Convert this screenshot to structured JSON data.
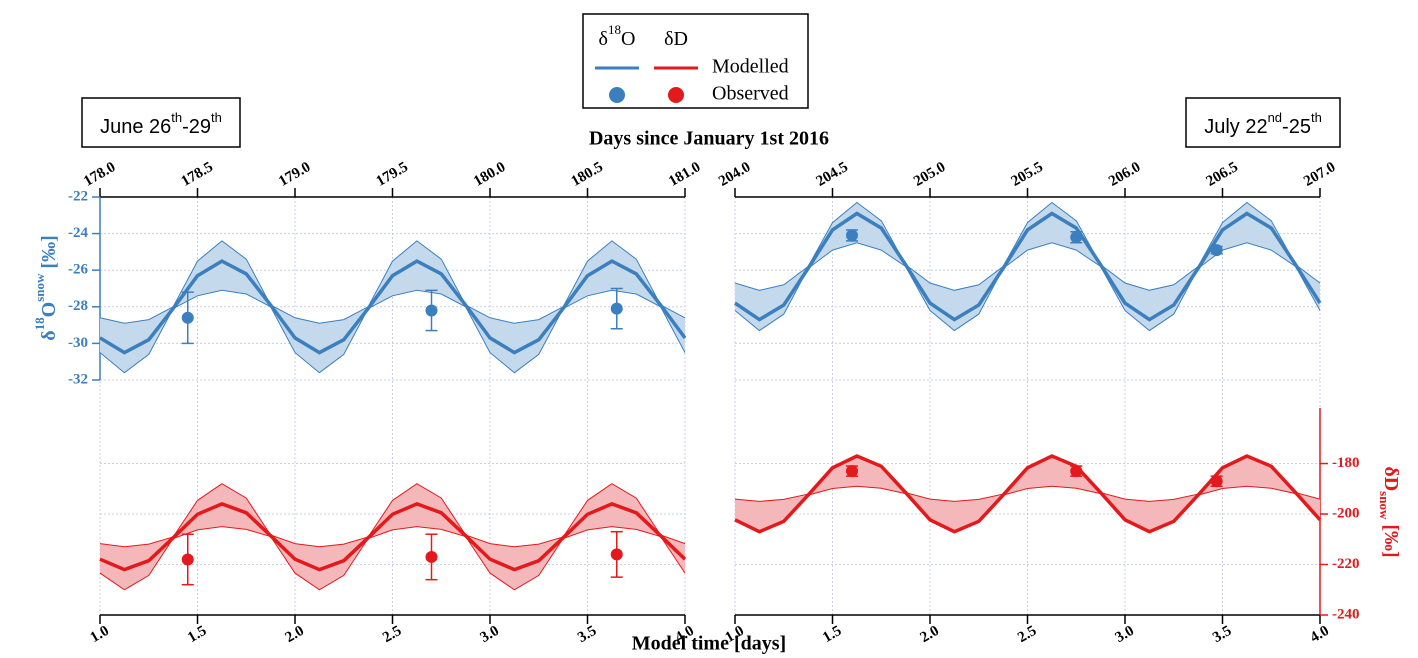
{
  "chart_data": [
    {
      "type": "line",
      "title": [
        {
          "text": "June 26"
        },
        {
          "text": "th",
          "sup": true
        },
        {
          "text": "-29"
        },
        {
          "text": "th",
          "sup": true
        }
      ],
      "x": [
        1,
        1.125,
        1.25,
        1.375,
        1.5,
        1.625,
        1.75,
        1.875,
        2,
        2.125,
        2.25,
        2.375,
        2.5,
        2.625,
        2.75,
        2.875,
        3,
        3.125,
        3.25,
        3.375,
        3.5,
        3.625,
        3.75,
        3.875,
        4
      ],
      "xlim": [
        1,
        4
      ],
      "xticks": [
        {
          "value": 1,
          "label": "1.0"
        },
        {
          "value": 1.5,
          "label": "1.5"
        },
        {
          "value": 2,
          "label": "2.0"
        },
        {
          "value": 2.5,
          "label": "2.5"
        },
        {
          "value": 3,
          "label": "3.0"
        },
        {
          "value": 3.5,
          "label": "3.5"
        },
        {
          "value": 4,
          "label": "4.0"
        }
      ],
      "x2lim": [
        178,
        181
      ],
      "x2ticks": [
        {
          "value": 178,
          "label": "178.0"
        },
        {
          "value": 178.5,
          "label": "178.5"
        },
        {
          "value": 179,
          "label": "179.0"
        },
        {
          "value": 179.5,
          "label": "179.5"
        },
        {
          "value": 180,
          "label": "180.0"
        },
        {
          "value": 180.5,
          "label": "180.5"
        },
        {
          "value": 181,
          "label": "181.0"
        }
      ],
      "ylim": [
        -32,
        -22
      ],
      "yticks": [
        -32,
        -30,
        -28,
        -26,
        -24,
        -22
      ],
      "y2lim": [
        -240,
        -158
      ],
      "grid": true,
      "series": [
        {
          "color": "#3b7fbf",
          "band_color": "#c5d9ec",
          "values": [
            -29.7,
            -30.5,
            -29.8,
            -28.1,
            -26.3,
            -25.5,
            -26.2,
            -27.9,
            -29.7,
            -30.5,
            -29.8,
            -28.1,
            -26.3,
            -25.5,
            -26.2,
            -27.9,
            -29.7,
            -30.5,
            -29.8,
            -28.1,
            -26.3,
            -25.5,
            -26.2,
            -27.9,
            -29.7
          ],
          "upper": [
            -28.6,
            -28.9,
            -28.7,
            -28.0,
            -25.5,
            -24.4,
            -25.4,
            -27.9,
            -28.6,
            -28.9,
            -28.7,
            -28.0,
            -25.5,
            -24.4,
            -25.4,
            -27.9,
            -28.6,
            -28.9,
            -28.7,
            -28.0,
            -25.5,
            -24.4,
            -25.4,
            -27.9,
            -28.6
          ],
          "lower": [
            -30.5,
            -31.6,
            -30.6,
            -28.1,
            -27.4,
            -27.1,
            -27.3,
            -28.0,
            -30.5,
            -31.6,
            -30.6,
            -28.1,
            -27.4,
            -27.1,
            -27.3,
            -28.0,
            -30.5,
            -31.6,
            -30.6,
            -28.1,
            -27.4,
            -27.1,
            -27.3,
            -28.0,
            -30.5
          ],
          "observed": {
            "x": [
              1.45,
              2.7,
              3.65
            ],
            "values": [
              -28.6,
              -28.2,
              -28.1
            ],
            "errors": [
              1.4,
              1.1,
              1.1
            ]
          }
        },
        {
          "axis": "y2",
          "color": "#e3191c",
          "band_color": "#f5b8ba",
          "values": [
            -217.9,
            -222,
            -218.5,
            -209.4,
            -200.1,
            -196,
            -199.5,
            -208.6,
            -217.9,
            -222,
            -218.5,
            -209.4,
            -200.1,
            -196,
            -199.5,
            -208.6,
            -217.9,
            -222,
            -218.5,
            -209.4,
            -200.1,
            -196,
            -199.5,
            -208.6,
            -217.9
          ],
          "upper": [
            -211.7,
            -213,
            -211.9,
            -209.1,
            -194.6,
            -188,
            -193.7,
            -208.3,
            -211.7,
            -213,
            -211.9,
            -209.1,
            -194.6,
            -188,
            -193.7,
            -208.3,
            -211.7,
            -213,
            -211.9,
            -209.1,
            -194.6,
            -188,
            -193.7,
            -208.3,
            -211.7
          ],
          "lower": [
            -223.4,
            -230,
            -224.3,
            -209.7,
            -206.3,
            -205,
            -206.1,
            -208.9,
            -223.4,
            -230,
            -224.3,
            -209.7,
            -206.3,
            -205,
            -206.1,
            -208.9,
            -223.4,
            -230,
            -224.3,
            -209.7,
            -206.3,
            -205,
            -206.1,
            -208.9,
            -223.4
          ],
          "observed": {
            "x": [
              1.45,
              2.7,
              3.65
            ],
            "values": [
              -218,
              -217,
              -216
            ],
            "errors": [
              10,
              9,
              9
            ]
          }
        }
      ]
    },
    {
      "type": "line",
      "title": [
        {
          "text": "July 22"
        },
        {
          "text": "nd",
          "sup": true
        },
        {
          "text": "-25"
        },
        {
          "text": "th",
          "sup": true
        }
      ],
      "x": [
        1,
        1.125,
        1.25,
        1.375,
        1.5,
        1.625,
        1.75,
        1.875,
        2,
        2.125,
        2.25,
        2.375,
        2.5,
        2.625,
        2.75,
        2.875,
        3,
        3.125,
        3.25,
        3.375,
        3.5,
        3.625,
        3.75,
        3.875,
        4
      ],
      "xlim": [
        1,
        4
      ],
      "xticks": [
        {
          "value": 1,
          "label": "1.0"
        },
        {
          "value": 1.5,
          "label": "1.5"
        },
        {
          "value": 2,
          "label": "2.0"
        },
        {
          "value": 2.5,
          "label": "2.5"
        },
        {
          "value": 3,
          "label": "3.0"
        },
        {
          "value": 3.5,
          "label": "3.5"
        },
        {
          "value": 4,
          "label": "4.0"
        }
      ],
      "x2lim": [
        204,
        207
      ],
      "x2ticks": [
        {
          "value": 204,
          "label": "204.0"
        },
        {
          "value": 204.5,
          "label": "204.5"
        },
        {
          "value": 205,
          "label": "205.0"
        },
        {
          "value": 205.5,
          "label": "205.5"
        },
        {
          "value": 206,
          "label": "206.0"
        },
        {
          "value": 206.5,
          "label": "206.5"
        },
        {
          "value": 207,
          "label": "207.0"
        }
      ],
      "ylim": [
        -32,
        -22
      ],
      "y2lim": [
        -240,
        -158
      ],
      "y2ticks": [
        -240,
        -220,
        -200,
        -180
      ],
      "grid": true,
      "series": [
        {
          "color": "#3b7fbf",
          "band_color": "#c5d9ec",
          "values": [
            -27.8,
            -28.7,
            -27.9,
            -25.9,
            -23.8,
            -22.9,
            -23.7,
            -25.7,
            -27.8,
            -28.7,
            -27.9,
            -25.9,
            -23.8,
            -22.9,
            -23.7,
            -25.7,
            -27.8,
            -28.7,
            -27.9,
            -25.9,
            -23.8,
            -22.9,
            -23.7,
            -25.7,
            -27.8
          ],
          "upper": [
            -26.7,
            -27.1,
            -26.8,
            -25.8,
            -23.4,
            -22.3,
            -23.3,
            -25.7,
            -26.7,
            -27.1,
            -26.8,
            -25.8,
            -23.4,
            -22.3,
            -23.3,
            -25.7,
            -26.7,
            -27.1,
            -26.8,
            -25.8,
            -23.4,
            -22.3,
            -23.3,
            -25.7,
            -26.7
          ],
          "lower": [
            -28.2,
            -29.3,
            -28.4,
            -25.9,
            -24.9,
            -24.5,
            -24.9,
            -25.8,
            -28.2,
            -29.3,
            -28.4,
            -25.9,
            -24.9,
            -24.5,
            -24.9,
            -25.8,
            -28.2,
            -29.3,
            -28.4,
            -25.9,
            -24.9,
            -24.5,
            -24.9,
            -25.8,
            -28.2
          ],
          "observed": {
            "x": [
              1.6,
              2.75,
              3.47
            ],
            "values": [
              -24.1,
              -24.2,
              -24.9
            ],
            "errors": [
              0.3,
              0.3,
              0.2
            ]
          }
        },
        {
          "axis": "y2",
          "color": "#e3191c",
          "band_color": "#f5b8ba",
          "values": [
            -202.3,
            -207,
            -202.9,
            -192.5,
            -181.7,
            -177,
            -181.1,
            -191.5,
            -202.3,
            -207,
            -202.9,
            -192.5,
            -181.7,
            -177,
            -181.1,
            -191.5,
            -202.3,
            -207,
            -202.9,
            -192.5,
            -181.7,
            -177,
            -181.1,
            -191.5,
            -202.3
          ],
          "upper": [
            -194.1,
            -195,
            -194.2,
            -192.1,
            -181.7,
            -177,
            -181.1,
            -191.5,
            -194.1,
            -195,
            -194.2,
            -192.1,
            -181.7,
            -177,
            -181.1,
            -191.5,
            -194.1,
            -195,
            -194.2,
            -192.1,
            -181.7,
            -177,
            -181.1,
            -191.5,
            -194.1
          ],
          "lower": [
            -202.3,
            -207,
            -202.9,
            -192.5,
            -189.9,
            -189,
            -189.8,
            -191.9,
            -202.3,
            -207,
            -202.9,
            -192.5,
            -189.9,
            -189,
            -189.8,
            -191.9,
            -202.3,
            -207,
            -202.9,
            -192.5,
            -189.9,
            -189,
            -189.8,
            -191.9,
            -202.3
          ],
          "observed": {
            "x": [
              1.6,
              2.75,
              3.47
            ],
            "values": [
              -183,
              -183,
              -187
            ],
            "errors": [
              2,
              2,
              2
            ]
          }
        }
      ]
    }
  ],
  "x_label": "Model time [days]",
  "x2_label": "Days since January 1st 2016",
  "y_label": [
    {
      "text": "δ"
    },
    {
      "text": "18",
      "sup": true
    },
    {
      "text": "O"
    },
    {
      "text": "snow",
      "sup": true
    },
    {
      "text": " [‰]"
    }
  ],
  "y2_label": [
    {
      "text": "δD"
    },
    {
      "text": "snow",
      "sub": true
    },
    {
      "text": " [‰]"
    }
  ],
  "legend": {
    "columns": [
      [
        {
          "text": "δ"
        },
        {
          "text": "18",
          "sup": true
        },
        {
          "text": "O"
        }
      ],
      [
        {
          "text": "δD"
        }
      ]
    ],
    "rows": [
      "Modelled",
      "Observed"
    ]
  }
}
